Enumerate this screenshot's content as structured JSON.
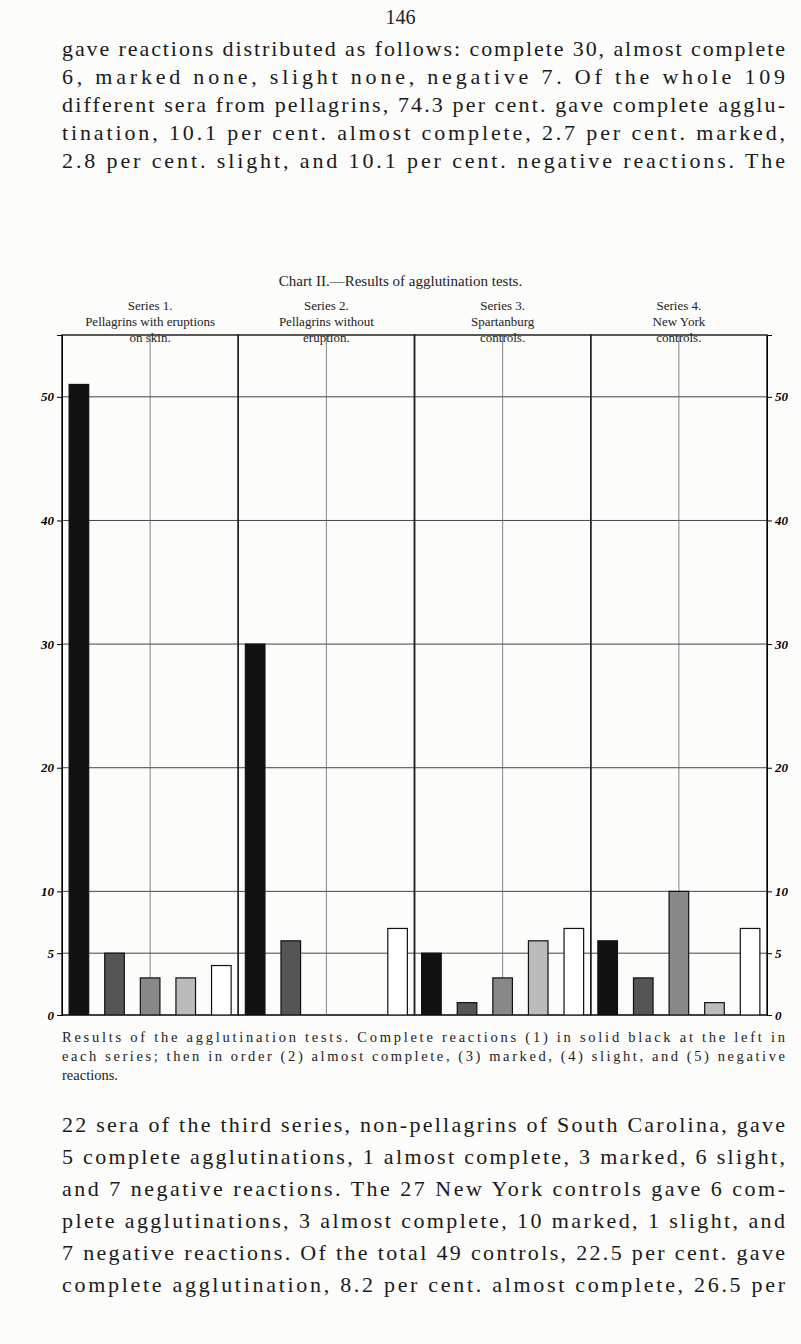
{
  "page_number": "146",
  "paragraphs": [
    [
      "gave reactions distributed as follows: complete 30, almost complete",
      "6, marked none, slight none, negative 7. Of the whole 109",
      "different sera from pellagrins, 74.3 per cent. gave complete agglu-",
      "tination, 10.1 per cent. almost complete, 2.7 per cent. marked,",
      "2.8 per cent. slight, and 10.1 per cent. negative reactions. The"
    ],
    [
      "22 sera of the third series, non-pellagrins of South Carolina, gave",
      "5 complete agglutinations, 1 almost complete, 3 marked, 6 slight,",
      "and 7 negative reactions. The 27 New York controls gave 6 com-",
      "plete agglutinations, 3 almost complete, 10 marked, 1 slight, and",
      "7 negative reactions. Of the total 49 controls, 22.5 per cent. gave",
      "complete agglutination, 8.2 per cent. almost complete, 26.5 per"
    ]
  ],
  "chart_data": {
    "type": "bar",
    "title": "Chart II.—Results of agglutination tests.",
    "categories": [
      [
        "Series 1.",
        "Pellagrins with eruptions",
        "on skin."
      ],
      [
        "Series 2.",
        "Pellagrins without",
        "eruption."
      ],
      [
        "Series 3.",
        "Spartanburg",
        "controls."
      ],
      [
        "Series 4.",
        "New York",
        "controls."
      ]
    ],
    "series": [
      {
        "color": "#111111",
        "values": [
          51,
          30,
          5,
          6
        ]
      },
      {
        "color": "#555555",
        "values": [
          5,
          6,
          1,
          3
        ]
      },
      {
        "color": "#888888",
        "values": [
          3,
          0,
          3,
          10
        ]
      },
      {
        "color": "#bbbbbb",
        "values": [
          3,
          0,
          6,
          1
        ]
      },
      {
        "color": "#ffffff",
        "values": [
          4,
          7,
          7,
          7
        ]
      }
    ],
    "ylim": [
      0,
      55
    ],
    "yticks": [
      0,
      5,
      10,
      20,
      30,
      40,
      50
    ],
    "grid": true
  },
  "caption": [
    "Results of the agglutination tests. Complete reactions (1) in solid black at the left in",
    "each series; then in order (2) almost complete, (3) marked, (4) slight, and (5) negative",
    "reactions."
  ]
}
